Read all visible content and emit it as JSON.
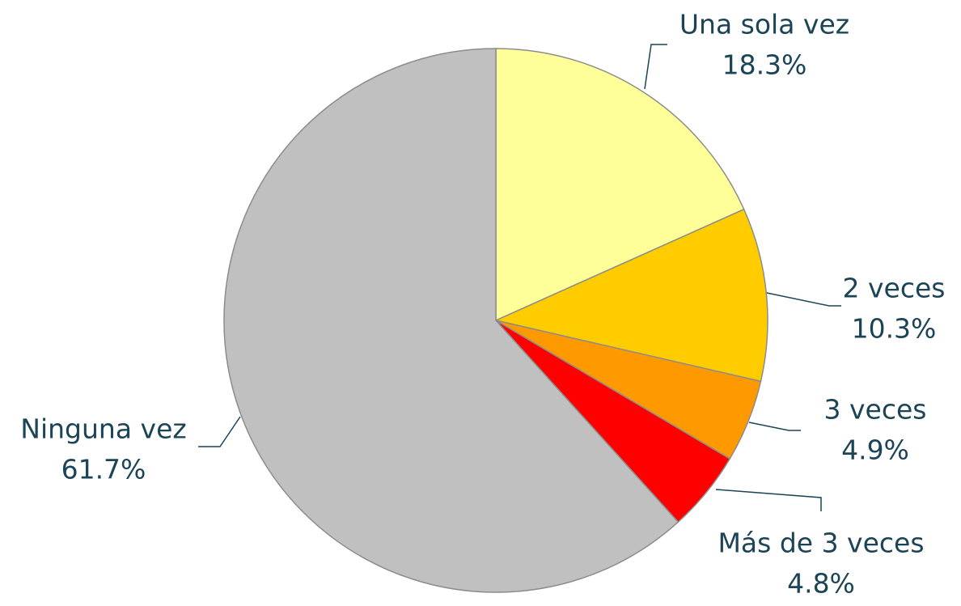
{
  "chart_data": {
    "type": "pie",
    "categories": [
      "Una sola vez",
      "2 veces",
      "3 veces",
      "Más de 3 veces",
      "Ninguna vez"
    ],
    "values": [
      18.3,
      10.3,
      4.9,
      4.8,
      61.7
    ],
    "value_labels": [
      "18.3%",
      "10.3%",
      "4.9%",
      "4.8%",
      "61.7%"
    ],
    "colors": [
      "#ffff99",
      "#ffcc00",
      "#ff9900",
      "#ff0000",
      "#c0c0c0"
    ]
  }
}
